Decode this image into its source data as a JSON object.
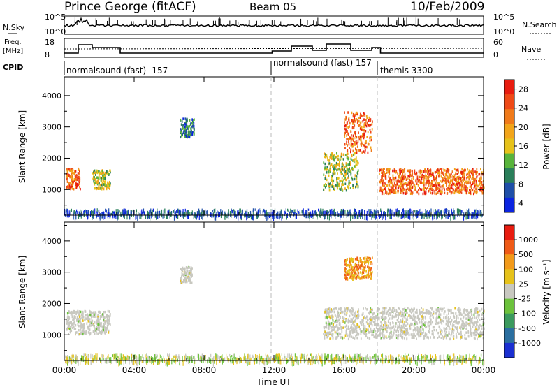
{
  "header": {
    "station": "Prince George (fitACF)",
    "beam": "Beam 05",
    "date": "10/Feb/2009"
  },
  "top_panel": {
    "left_label": "N.Sky",
    "left_ticks": [
      "10^5",
      "10^0"
    ],
    "right_label": "N.Search",
    "right_ticks": [
      "10^5",
      "10^0"
    ]
  },
  "freq_panel": {
    "left_label_1": "Freq.",
    "left_label_2": "[MHz]",
    "left_ticks": [
      "18",
      "8"
    ],
    "right_label": "Nave",
    "right_ticks": [
      "60",
      "0"
    ]
  },
  "cpid": {
    "label": "CPID",
    "segments": [
      {
        "text": "normalsound (fast) -157"
      },
      {
        "text": "normalsound (fast) 157"
      },
      {
        "text": "themis 3300"
      }
    ]
  },
  "x_axis": {
    "title": "Time UT",
    "ticks": [
      "00:00",
      "04:00",
      "08:00",
      "12:00",
      "16:00",
      "20:00",
      "00:00"
    ]
  },
  "power_panel": {
    "ylabel": "Slant Range [km]",
    "yticks": [
      "1000",
      "2000",
      "3000",
      "4000"
    ],
    "colorbar_title": "Power [dB]",
    "colorbar_ticks": [
      "4",
      "8",
      "12",
      "16",
      "20",
      "24",
      "28"
    ],
    "colors": [
      "#0b24e0",
      "#1f4fa8",
      "#2a7f5a",
      "#58b43c",
      "#e6c21a",
      "#f2a51a",
      "#f07a1a",
      "#ef4a17",
      "#e81c10"
    ]
  },
  "velocity_panel": {
    "ylabel": "Slant Range [km]",
    "yticks": [
      "1000",
      "2000",
      "3000",
      "4000"
    ],
    "colorbar_title": "Velocity [m s⁻¹]",
    "colorbar_ticks": [
      "1000",
      "500",
      "100",
      "25",
      "-25",
      "-100",
      "-500",
      "-1000"
    ],
    "colors": [
      "#1a2fd1",
      "#2b6fa0",
      "#3b9a5e",
      "#6cc23c",
      "#c8c8c0",
      "#e6c21a",
      "#f29a1a",
      "#ef5a17",
      "#e81c10"
    ]
  },
  "chart_data": {
    "type": "heatmap",
    "x_range_hours": [
      0,
      24
    ],
    "y_range_km": [
      180,
      4600
    ],
    "power_features": [
      {
        "t0": 0.1,
        "t1": 0.9,
        "r0": 1050,
        "r1": 1700,
        "level": "high"
      },
      {
        "t0": 1.6,
        "t1": 2.6,
        "r0": 1050,
        "r1": 1650,
        "level": "mid"
      },
      {
        "t0": 6.6,
        "t1": 7.4,
        "r0": 2700,
        "r1": 3300,
        "level": "low"
      },
      {
        "t0": 14.8,
        "t1": 16.8,
        "r0": 1000,
        "r1": 2200,
        "level": "mid"
      },
      {
        "t0": 16.0,
        "t1": 17.6,
        "r0": 2200,
        "r1": 3500,
        "level": "high"
      },
      {
        "t0": 18.0,
        "t1": 24.0,
        "r0": 900,
        "r1": 1700,
        "level": "high"
      }
    ],
    "velocity_features": [
      {
        "t0": 0.1,
        "t1": 2.6,
        "r0": 1050,
        "r1": 1800,
        "level": "zero"
      },
      {
        "t0": 6.6,
        "t1": 7.3,
        "r0": 2700,
        "r1": 3200,
        "level": "zero"
      },
      {
        "t0": 16.0,
        "t1": 17.6,
        "r0": 2800,
        "r1": 3500,
        "level": "negative"
      },
      {
        "t0": 14.8,
        "t1": 24.0,
        "r0": 900,
        "r1": 1900,
        "level": "zero"
      }
    ]
  }
}
